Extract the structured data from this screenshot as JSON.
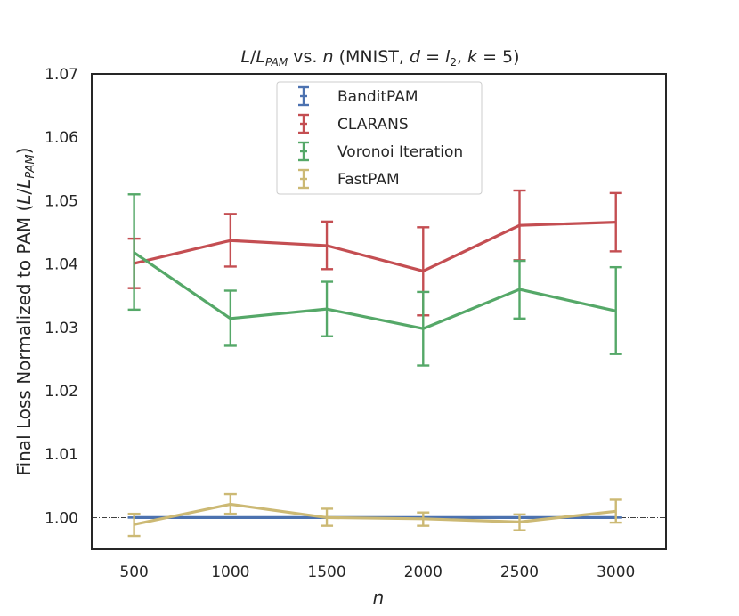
{
  "chart_data": {
    "type": "line",
    "title_parts": {
      "L": "L",
      "slash": "/",
      "L2": "L",
      "sub_pam": "PAM",
      "vs": " vs. ",
      "n": "n",
      "paren_open": " (MNIST, ",
      "d": "d",
      "eq1": " = ",
      "l": "l",
      "sub_2": "2",
      "comma": ", ",
      "k": "k",
      "eq2": " = 5)"
    },
    "xlabel": "n",
    "ylabel_parts": {
      "text": "Final Loss Normalized to PAM (",
      "L": "L",
      "slash": "/",
      "L2": "L",
      "sub_pam": "PAM",
      "close": ")"
    },
    "x": [
      500,
      1000,
      1500,
      2000,
      2500,
      3000
    ],
    "xtick_labels": [
      "500",
      "1000",
      "1500",
      "2000",
      "2500",
      "3000"
    ],
    "xlim": [
      280,
      3260
    ],
    "ylim": [
      0.995,
      1.07
    ],
    "yticks": [
      1.0,
      1.01,
      1.02,
      1.03,
      1.04,
      1.05,
      1.06,
      1.07
    ],
    "ytick_labels": [
      "1.00",
      "1.01",
      "1.02",
      "1.03",
      "1.04",
      "1.05",
      "1.06",
      "1.07"
    ],
    "reference_line": 1.0,
    "legend_position": "top-center",
    "series": [
      {
        "name": "BanditPAM",
        "color": "#4c72b0",
        "values": [
          1.0,
          1.0,
          1.0,
          1.0,
          1.0,
          1.0
        ],
        "err_low": [
          1.0,
          1.0,
          1.0,
          1.0,
          1.0,
          1.0
        ],
        "err_high": [
          1.0,
          1.0,
          1.0,
          1.0,
          1.0,
          1.0
        ]
      },
      {
        "name": "CLARANS",
        "color": "#c44e52",
        "values": [
          1.0401,
          1.0437,
          1.0429,
          1.0389,
          1.0461,
          1.0466
        ],
        "err_low": [
          1.0362,
          1.0396,
          1.0392,
          1.0319,
          1.0406,
          1.042
        ],
        "err_high": [
          1.044,
          1.0479,
          1.0467,
          1.0458,
          1.0516,
          1.0512
        ]
      },
      {
        "name": "Voronoi Iteration",
        "color": "#55a868",
        "values": [
          1.0418,
          1.0314,
          1.0329,
          1.0298,
          1.036,
          1.0326
        ],
        "err_low": [
          1.0328,
          1.0271,
          1.0286,
          1.024,
          1.0314,
          1.0258
        ],
        "err_high": [
          1.051,
          1.0358,
          1.0372,
          1.0356,
          1.0405,
          1.0395
        ]
      },
      {
        "name": "FastPAM",
        "color": "#ccb974",
        "values": [
          0.9989,
          1.0021,
          1.0,
          0.9998,
          0.9993,
          1.001
        ],
        "err_low": [
          0.9971,
          1.0006,
          0.9987,
          0.9987,
          0.998,
          0.9992
        ],
        "err_high": [
          1.0006,
          1.0037,
          1.0014,
          1.0008,
          1.0005,
          1.0028
        ]
      }
    ]
  }
}
